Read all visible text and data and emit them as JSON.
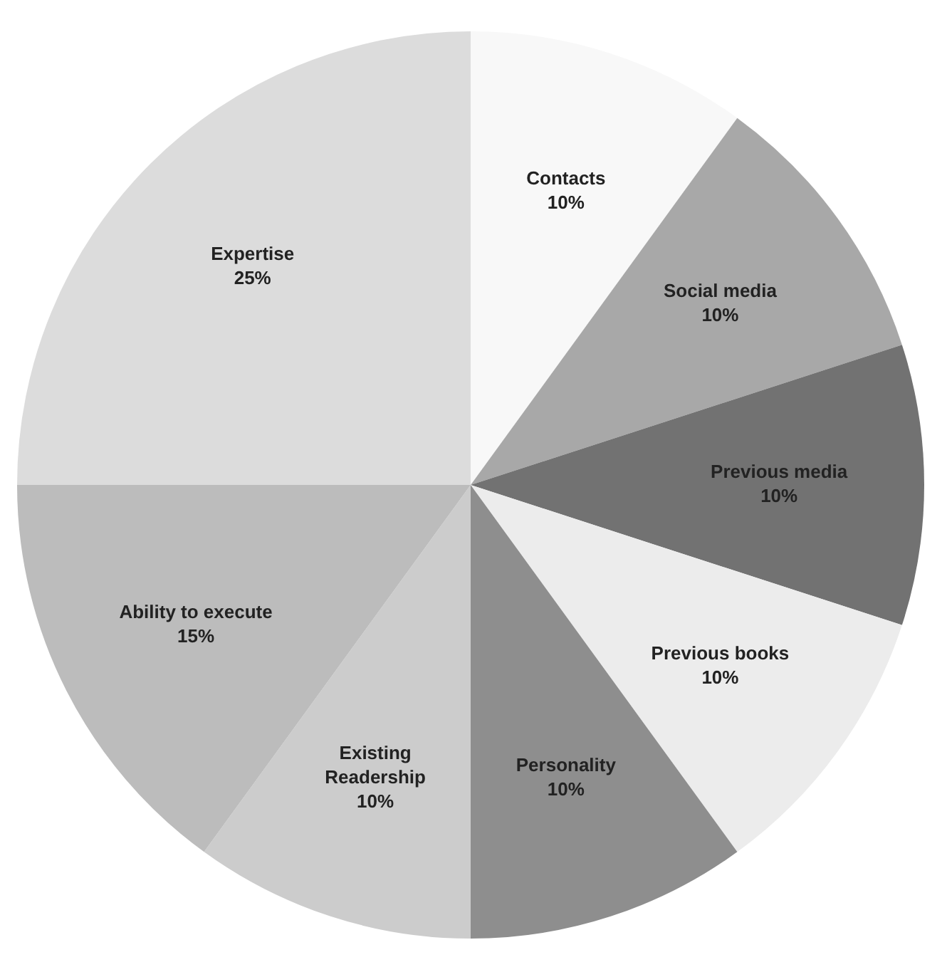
{
  "chart_data": {
    "type": "pie",
    "categories": [
      "Contacts",
      "Social media",
      "Previous media",
      "Previous books",
      "Personality",
      "Existing Readership",
      "Ability to execute",
      "Expertise"
    ],
    "values": [
      10,
      10,
      10,
      10,
      10,
      10,
      15,
      25
    ],
    "value_labels": [
      "10%",
      "10%",
      "10%",
      "10%",
      "10%",
      "10%",
      "15%",
      "25%"
    ],
    "colors": [
      "#f8f8f8",
      "#a8a8a8",
      "#727272",
      "#ececec",
      "#8e8e8e",
      "#cccccc",
      "#bcbcbc",
      "#dcdcdc"
    ],
    "legend": false
  }
}
